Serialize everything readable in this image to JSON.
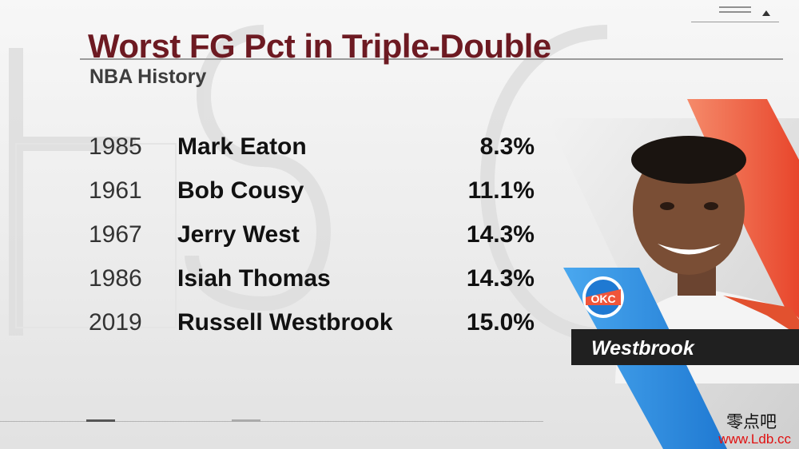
{
  "graphic": {
    "title": "Worst FG Pct in Triple-Double",
    "subtitle": "NBA History",
    "rows": [
      {
        "year": "1985",
        "player": "Mark Eaton",
        "pct": "8.3%"
      },
      {
        "year": "1961",
        "player": "Bob Cousy",
        "pct": "11.1%"
      },
      {
        "year": "1967",
        "player": "Jerry West",
        "pct": "14.3%"
      },
      {
        "year": "1986",
        "player": "Isiah Thomas",
        "pct": "14.3%"
      },
      {
        "year": "2019",
        "player": "Russell Westbrook",
        "pct": "15.0%"
      }
    ]
  },
  "player_card": {
    "nameplate": "Westbrook",
    "team_logo": "OKC",
    "accent_blue": "#2f8fe0",
    "accent_orange": "#f0553a"
  },
  "colors": {
    "title": "#6d1a22",
    "text": "#111111"
  },
  "watermark": {
    "line1": "零点吧",
    "line2": "www.Ldb.cc"
  }
}
